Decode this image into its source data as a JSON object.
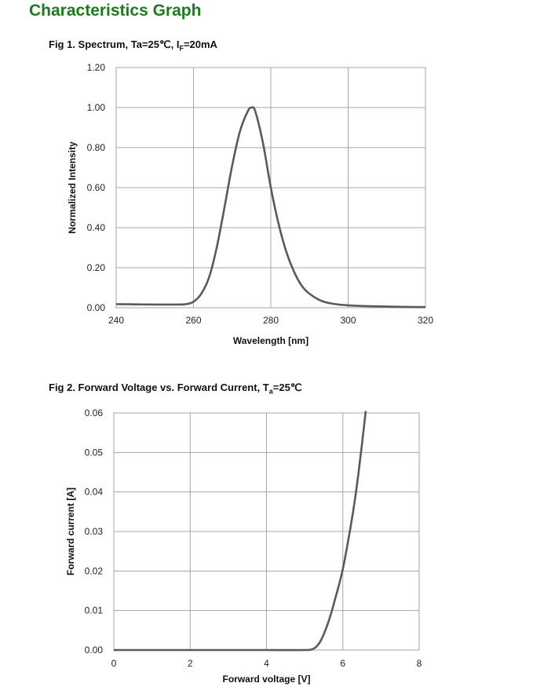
{
  "header": {
    "title": "Characteristics Graph"
  },
  "figures": {
    "fig1": {
      "title_main": "Fig 1. Spectrum, Ta=25℃, I",
      "title_sub": "F",
      "title_tail": "=20mA"
    },
    "fig2": {
      "title_main": "Fig 2. Forward Voltage vs. Forward Current, T",
      "title_sub": "a",
      "title_tail": "=25℃"
    }
  },
  "colors": {
    "title": "#1f7a1f",
    "curve": "#5a5a5a",
    "grid": "#a6a6a6"
  },
  "chart_data": [
    {
      "type": "line",
      "xlabel": "Wavelength [nm]",
      "ylabel": "Normalized Intensity",
      "xlim": [
        240,
        320
      ],
      "ylim": [
        0,
        1.2
      ],
      "x_ticks": [
        "240",
        "260",
        "280",
        "300",
        "320"
      ],
      "y_ticks": [
        "0.00",
        "0.20",
        "0.40",
        "0.60",
        "0.80",
        "1.00",
        "1.20"
      ],
      "grid": true,
      "series": [
        {
          "x": [
            240,
            245,
            250,
            255,
            258,
            260,
            262,
            264,
            266,
            268,
            270,
            272,
            274,
            275,
            276,
            278,
            280,
            282,
            284,
            286,
            288,
            290,
            293,
            296,
            300,
            305,
            310,
            315,
            320
          ],
          "y": [
            0.018,
            0.017,
            0.016,
            0.016,
            0.018,
            0.03,
            0.07,
            0.15,
            0.3,
            0.5,
            0.71,
            0.88,
            0.98,
            1.0,
            0.98,
            0.82,
            0.6,
            0.42,
            0.28,
            0.18,
            0.11,
            0.07,
            0.035,
            0.02,
            0.012,
            0.008,
            0.006,
            0.004,
            0.003
          ]
        }
      ]
    },
    {
      "type": "line",
      "xlabel": "Forward voltage [V]",
      "ylabel": "Forward current [A]",
      "xlim": [
        0,
        8
      ],
      "ylim": [
        0,
        0.06
      ],
      "x_ticks": [
        "0",
        "2",
        "4",
        "6",
        "8"
      ],
      "y_ticks": [
        "0.00",
        "0.01",
        "0.02",
        "0.03",
        "0.04",
        "0.05",
        "0.06"
      ],
      "grid": true,
      "series": [
        {
          "x": [
            0,
            1,
            2,
            3,
            4,
            5.0,
            5.2,
            5.3,
            5.4,
            5.5,
            5.6,
            5.7,
            5.8,
            5.9,
            6.0,
            6.1,
            6.2,
            6.3,
            6.4,
            6.5,
            6.6
          ],
          "y": [
            0,
            0,
            0,
            0,
            0,
            0.0,
            0.0002,
            0.0008,
            0.002,
            0.004,
            0.0065,
            0.0095,
            0.013,
            0.0165,
            0.0205,
            0.0255,
            0.031,
            0.037,
            0.044,
            0.052,
            0.0605
          ]
        }
      ]
    }
  ]
}
